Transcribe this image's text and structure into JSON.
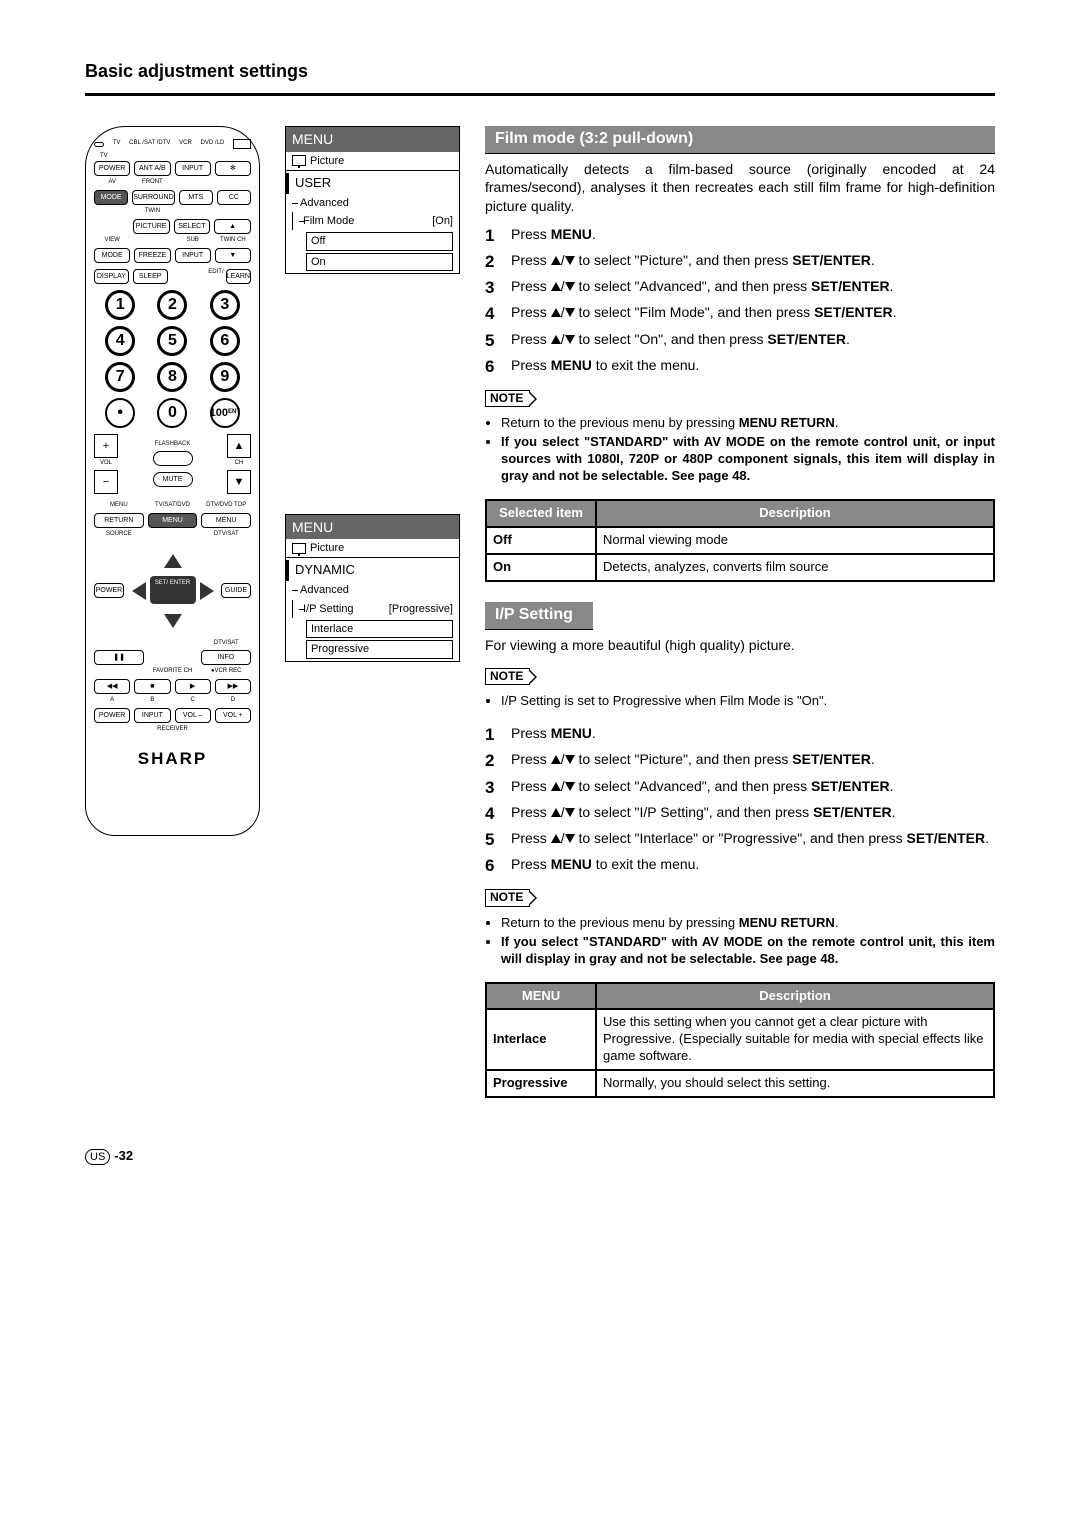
{
  "page": {
    "title": "Basic adjustment settings",
    "footer_region": "US",
    "footer_page": "-32"
  },
  "remote": {
    "brand": "SHARP",
    "top_labels": [
      "TV",
      "CBL /SAT /DTV",
      "VCR",
      "DVD /LD"
    ],
    "power": "POWER",
    "ant": "ANT A/B",
    "input": "INPUT",
    "light": "✻",
    "av": "AV",
    "mode_row_mode": "MODE",
    "front": "FRONT",
    "surround": "SURROUND",
    "mts": "MTS",
    "cc": "CC",
    "twin": "TWIN",
    "picture": "PICTURE",
    "select": "SELECT",
    "view": "VIEW",
    "mode2": "MODE",
    "freeze": "FREEZE",
    "sub": "SUB",
    "input2": "INPUT",
    "twinch": "TWIN CH",
    "display": "DISPLAY",
    "sleep": "SLEEP",
    "edit": "EDIT/",
    "learn": "LEARN",
    "ent": "ENT",
    "flashback": "FLASHBACK",
    "vol": "VOL",
    "ch": "CH",
    "mute": "MUTE",
    "menu": "MENU",
    "tvsatdvd": "TV/SAT/DVD",
    "dtvtop": "DTV/DVD TOP",
    "return": "RETURN",
    "menu2": "MENU",
    "menu3": "MENU",
    "source": "SOURCE",
    "power2": "POWER",
    "dtvsat": "DTV/SAT",
    "guide": "GUIDE",
    "setenter": "SET/ ENTER",
    "dtvsat2": "DTV/SAT",
    "info": "INFO",
    "pause": "❚❚",
    "favorite": "FAVORITE CH",
    "vcrrec": "VCR REC",
    "abcd": [
      "A",
      "B",
      "C",
      "D"
    ],
    "power3": "POWER",
    "input3": "INPUT",
    "volm": "VOL –",
    "volp": "VOL +",
    "receiver": "RECEIVER"
  },
  "menu1": {
    "header": "MENU",
    "picture": "Picture",
    "mode": "USER",
    "advanced": "Advanced",
    "filmmode": "Film Mode",
    "filmmode_val": "[On]",
    "opt_off": "Off",
    "opt_on": "On"
  },
  "menu2": {
    "header": "MENU",
    "picture": "Picture",
    "mode": "DYNAMIC",
    "advanced": "Advanced",
    "ipsetting": "I/P Setting",
    "ipsetting_val": "[Progressive]",
    "opt_interlace": "Interlace",
    "opt_progressive": "Progressive"
  },
  "sectionA": {
    "title": "Film mode (3:2 pull-down)",
    "intro": "Automatically detects a film-based source (originally encoded at 24 frames/second), analyses it then recreates each still film frame for high-definition picture quality.",
    "steps": [
      {
        "pre": "Press ",
        "b": "MENU",
        "post": "."
      },
      {
        "pre": "Press ",
        "arrows": true,
        "mid": " to select \"Picture\", and then press ",
        "b": "SET/ENTER",
        "post": "."
      },
      {
        "pre": "Press ",
        "arrows": true,
        "mid": " to select \"Advanced\", and then press ",
        "b": "SET/ENTER",
        "post": "."
      },
      {
        "pre": "Press ",
        "arrows": true,
        "mid": " to select \"Film Mode\", and then press ",
        "b": "SET/ENTER",
        "post": "."
      },
      {
        "pre": "Press ",
        "arrows": true,
        "mid": " to select \"On\", and then press ",
        "b": "SET/ENTER",
        "post": "."
      },
      {
        "pre": "Press ",
        "b": "MENU",
        "post": " to exit the menu."
      }
    ],
    "note_label": "NOTE",
    "notes": [
      {
        "text": "Return to the previous menu by pressing ",
        "b": "MENU RETURN",
        "post": "."
      },
      {
        "b": "If you select \"STANDARD\" with AV MODE on the remote control unit, or input sources with 1080I, 720P or 480P component signals, this item will display in gray and not be selectable. See page 48."
      }
    ],
    "table": {
      "h1": "Selected item",
      "h2": "Description",
      "rows": [
        [
          "Off",
          "Normal viewing mode"
        ],
        [
          "On",
          "Detects, analyzes, converts film source"
        ]
      ]
    }
  },
  "sectionB": {
    "title": "I/P Setting",
    "intro": "For viewing a more beautiful (high quality) picture.",
    "note_label": "NOTE",
    "pre_notes": [
      {
        "text": "I/P Setting is set to Progressive when Film Mode is \"On\"."
      }
    ],
    "steps": [
      {
        "pre": "Press ",
        "b": "MENU",
        "post": "."
      },
      {
        "pre": "Press ",
        "arrows": true,
        "mid": " to select \"Picture\", and then press ",
        "b": "SET/ENTER",
        "post": "."
      },
      {
        "pre": "Press ",
        "arrows": true,
        "mid": " to select \"Advanced\", and then press ",
        "b": "SET/ENTER",
        "post": "."
      },
      {
        "pre": "Press ",
        "arrows": true,
        "mid": " to select \"I/P Setting\", and then press ",
        "b": "SET/ENTER",
        "post": "."
      },
      {
        "pre": "Press ",
        "arrows": true,
        "mid": " to select \"Interlace\" or \"Progressive\", and then press ",
        "b": "SET/ENTER",
        "post": "."
      },
      {
        "pre": "Press ",
        "b": "MENU",
        "post": " to exit the menu."
      }
    ],
    "notes": [
      {
        "text": "Return to the previous menu by pressing ",
        "b": "MENU RETURN",
        "post": "."
      },
      {
        "b": "If you select \"STANDARD\" with AV MODE on the remote control unit, this item will display in gray and not be selectable. See page 48."
      }
    ],
    "table": {
      "h1": "MENU",
      "h2": "Description",
      "rows": [
        [
          "Interlace",
          "Use this setting when you cannot get a clear picture with Progressive. (Especially suitable for media with special effects like game software."
        ],
        [
          "Progressive",
          "Normally, you should select this setting."
        ]
      ]
    }
  }
}
